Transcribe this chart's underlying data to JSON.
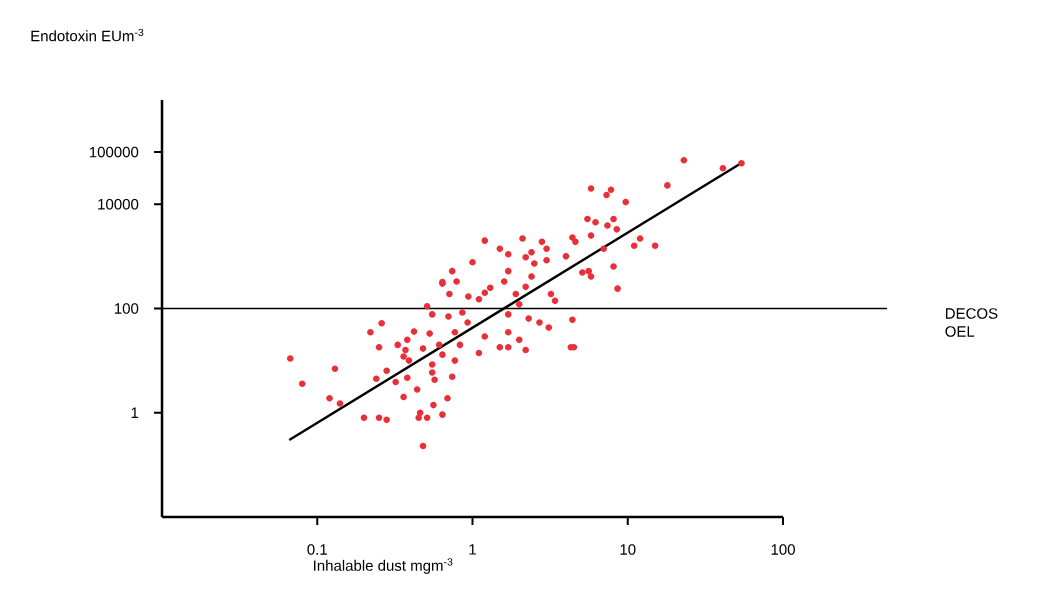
{
  "chart_data": {
    "type": "scatter",
    "xlabel": "Inhalable dust mgm$^{-3}$",
    "ylabel": "Endotoxin EUm$^{-3}$",
    "log": "xy",
    "xlim": [
      0.01,
      100
    ],
    "ylim": [
      0.01,
      1000000
    ],
    "xticks": [
      0.1,
      1,
      10,
      100
    ],
    "yticks": [
      1,
      100,
      10000,
      100000
    ],
    "ref_lines": [
      {
        "axis": "y",
        "value": 100,
        "label": "DECOS OEL",
        "color": "#000000"
      }
    ],
    "series": [
      {
        "color": "#e8303a",
        "x": [
          0.067,
          0.08,
          0.12,
          0.13,
          0.14,
          0.2,
          0.25,
          0.28,
          0.22,
          0.26,
          0.25,
          0.24,
          0.28,
          0.32,
          0.33,
          0.37,
          0.39,
          0.36,
          0.42,
          0.38,
          0.48,
          0.38,
          0.36,
          0.44,
          0.53,
          0.51,
          0.55,
          0.7,
          0.64,
          0.74,
          0.71,
          0.61,
          0.64,
          0.55,
          0.55,
          0.57,
          0.56,
          0.46,
          0.45,
          0.51,
          0.64,
          0.69,
          0.74,
          0.77,
          0.48,
          5.8,
          7.8,
          7.3,
          9.7,
          5.5,
          6.2,
          8.1,
          7.4,
          8.5,
          5.8,
          11,
          4.4,
          4.6,
          7.0,
          4.0,
          5.1,
          5.8,
          8.1,
          8.6,
          2.1,
          2.8,
          3.0,
          3.0,
          2.4,
          2.2,
          2.5,
          1.2,
          1.5,
          1.7,
          1.0,
          1.7,
          1.6,
          2.4,
          2.2,
          1.3,
          1.2,
          0.79,
          0.64,
          0.94,
          1.1,
          1.9,
          3.2,
          3.4,
          2.0,
          1.7,
          2.3,
          2.7,
          3.1,
          4.4,
          4.3,
          4.5,
          1.2,
          0.86,
          0.93,
          0.77,
          1.7,
          2.0,
          1.5,
          1.7,
          2.2,
          0.83,
          1.1,
          23,
          41,
          18,
          12,
          15,
          5.6,
          54
        ],
        "values": [
          11,
          3.6,
          1.9,
          7.0,
          1.5,
          0.8,
          0.8,
          0.73,
          35,
          52,
          18,
          4.5,
          6.4,
          3.9,
          20,
          16,
          10,
          12,
          36,
          25,
          17,
          4.7,
          2.0,
          2.8,
          33,
          110,
          77,
          70,
          320,
          520,
          190,
          20,
          13,
          8.4,
          5.9,
          4.3,
          1.4,
          1.0,
          0.8,
          0.8,
          0.92,
          1.9,
          4.9,
          10,
          0.23,
          20000,
          19000,
          15000,
          11000,
          5200,
          4500,
          5200,
          3900,
          3300,
          2500,
          1600,
          2300,
          1900,
          1400,
          1000,
          490,
          410,
          640,
          240,
          2200,
          1900,
          1400,
          840,
          1200,
          960,
          730,
          2000,
          1400,
          1100,
          770,
          520,
          330,
          410,
          260,
          250,
          200,
          330,
          300,
          170,
          150,
          190,
          190,
          140,
          120,
          77,
          64,
          54,
          43,
          61,
          18,
          18,
          29,
          84,
          54,
          35,
          35,
          25,
          18,
          18,
          16,
          20,
          14,
          70000,
          49000,
          23000,
          2200,
          1600,
          520,
          61000
        ]
      },
      {
        "type": "line",
        "color": "#000000",
        "marker": "none",
        "x": [
          0.066,
          55
        ],
        "values": [
          0.3,
          64000
        ]
      }
    ]
  }
}
